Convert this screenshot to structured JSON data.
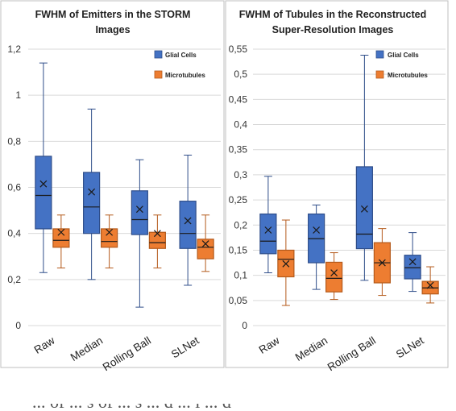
{
  "figure": {
    "caption_fragment": "... of ... s of ... s ... d ... l ... d"
  },
  "colors": {
    "glial_fill": "#4472C4",
    "glial_stroke": "#2F4E8A",
    "micro_fill": "#ED7D31",
    "micro_stroke": "#B45A1B",
    "grid": "#d9d9d9",
    "panel_border": "#bfbfbf"
  },
  "chart_data": [
    {
      "type": "box",
      "title": [
        "FWHM of Emitters in the STORM",
        "Images"
      ],
      "xlabel": "",
      "ylabel": "",
      "ylim": [
        0,
        1.2
      ],
      "yticks": [
        "0",
        "0,2",
        "0,4",
        "0,6",
        "0,8",
        "1",
        "1,2"
      ],
      "grid": true,
      "legend": "top-right",
      "categories": [
        "Raw",
        "Median",
        "Rolling Ball",
        "SLNet"
      ],
      "series": [
        {
          "name": "Glial Cells",
          "color": "blue",
          "boxes": [
            {
              "min": 0.23,
              "q1": 0.42,
              "median": 0.565,
              "q3": 0.735,
              "max": 1.14,
              "mean": 0.615
            },
            {
              "min": 0.2,
              "q1": 0.4,
              "median": 0.515,
              "q3": 0.665,
              "max": 0.94,
              "mean": 0.58
            },
            {
              "min": 0.08,
              "q1": 0.395,
              "median": 0.46,
              "q3": 0.585,
              "max": 0.72,
              "mean": 0.505
            },
            {
              "min": 0.175,
              "q1": 0.335,
              "median": 0.4,
              "q3": 0.54,
              "max": 0.74,
              "mean": 0.455
            }
          ]
        },
        {
          "name": "Microtubules",
          "color": "orange",
          "boxes": [
            {
              "min": 0.25,
              "q1": 0.34,
              "median": 0.37,
              "q3": 0.42,
              "max": 0.48,
              "mean": 0.405
            },
            {
              "min": 0.25,
              "q1": 0.34,
              "median": 0.365,
              "q3": 0.42,
              "max": 0.48,
              "mean": 0.405
            },
            {
              "min": 0.25,
              "q1": 0.335,
              "median": 0.36,
              "q3": 0.405,
              "max": 0.48,
              "mean": 0.4
            },
            {
              "min": 0.235,
              "q1": 0.29,
              "median": 0.34,
              "q3": 0.375,
              "max": 0.48,
              "mean": 0.355
            }
          ]
        }
      ]
    },
    {
      "type": "box",
      "title": [
        "FWHM of Tubules in the Reconstructed",
        "Super-Resolution Images"
      ],
      "xlabel": "",
      "ylabel": "",
      "ylim": [
        0,
        0.55
      ],
      "yticks": [
        "0",
        "0,05",
        "0,1",
        "0,15",
        "0,2",
        "0,25",
        "0,3",
        "0,35",
        "0,4",
        "0,45",
        "0,5",
        "0,55"
      ],
      "grid": true,
      "legend": "top-right",
      "categories": [
        "Raw",
        "Median",
        "Rolling Ball",
        "SLNet"
      ],
      "series": [
        {
          "name": "Glial Cells",
          "color": "blue",
          "boxes": [
            {
              "min": 0.105,
              "q1": 0.143,
              "median": 0.168,
              "q3": 0.222,
              "max": 0.297,
              "mean": 0.19
            },
            {
              "min": 0.072,
              "q1": 0.125,
              "median": 0.173,
              "q3": 0.222,
              "max": 0.24,
              "mean": 0.19
            },
            {
              "min": 0.09,
              "q1": 0.153,
              "median": 0.182,
              "q3": 0.316,
              "max": 0.538,
              "mean": 0.232
            },
            {
              "min": 0.068,
              "q1": 0.093,
              "median": 0.115,
              "q3": 0.14,
              "max": 0.185,
              "mean": 0.127
            }
          ]
        },
        {
          "name": "Microtubules",
          "color": "orange",
          "boxes": [
            {
              "min": 0.04,
              "q1": 0.097,
              "median": 0.132,
              "q3": 0.15,
              "max": 0.21,
              "mean": 0.123
            },
            {
              "min": 0.052,
              "q1": 0.067,
              "median": 0.094,
              "q3": 0.126,
              "max": 0.145,
              "mean": 0.105
            },
            {
              "min": 0.06,
              "q1": 0.085,
              "median": 0.125,
              "q3": 0.165,
              "max": 0.193,
              "mean": 0.125
            },
            {
              "min": 0.045,
              "q1": 0.063,
              "median": 0.075,
              "q3": 0.088,
              "max": 0.117,
              "mean": 0.08
            }
          ]
        }
      ]
    }
  ]
}
